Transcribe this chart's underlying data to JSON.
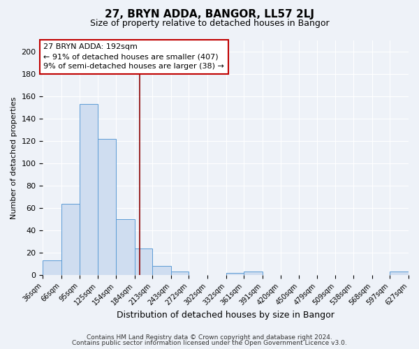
{
  "title": "27, BRYN ADDA, BANGOR, LL57 2LJ",
  "subtitle": "Size of property relative to detached houses in Bangor",
  "xlabel": "Distribution of detached houses by size in Bangor",
  "ylabel": "Number of detached properties",
  "bar_color": "#cfddf0",
  "bar_edge_color": "#5b9bd5",
  "bin_edges": [
    36,
    66,
    95,
    125,
    154,
    184,
    213,
    243,
    272,
    302,
    332,
    361,
    391,
    420,
    450,
    479,
    509,
    538,
    568,
    597,
    627
  ],
  "bin_labels": [
    "36sqm",
    "66sqm",
    "95sqm",
    "125sqm",
    "154sqm",
    "184sqm",
    "213sqm",
    "243sqm",
    "272sqm",
    "302sqm",
    "332sqm",
    "361sqm",
    "391sqm",
    "420sqm",
    "450sqm",
    "479sqm",
    "509sqm",
    "538sqm",
    "568sqm",
    "597sqm",
    "627sqm"
  ],
  "counts": [
    13,
    64,
    153,
    122,
    50,
    24,
    8,
    3,
    0,
    0,
    2,
    3,
    0,
    0,
    0,
    0,
    0,
    0,
    0,
    3
  ],
  "ylim": [
    0,
    210
  ],
  "yticks": [
    0,
    20,
    40,
    60,
    80,
    100,
    120,
    140,
    160,
    180,
    200
  ],
  "property_value": 192,
  "vline_color": "#8b0000",
  "annotation_text": "27 BRYN ADDA: 192sqm\n← 91% of detached houses are smaller (407)\n9% of semi-detached houses are larger (38) →",
  "annotation_box_color": "#ffffff",
  "annotation_box_edge": "#c00000",
  "footer_line1": "Contains HM Land Registry data © Crown copyright and database right 2024.",
  "footer_line2": "Contains public sector information licensed under the Open Government Licence v3.0.",
  "background_color": "#eef2f8",
  "grid_color": "#ffffff",
  "fig_width": 6.0,
  "fig_height": 5.0,
  "dpi": 100
}
